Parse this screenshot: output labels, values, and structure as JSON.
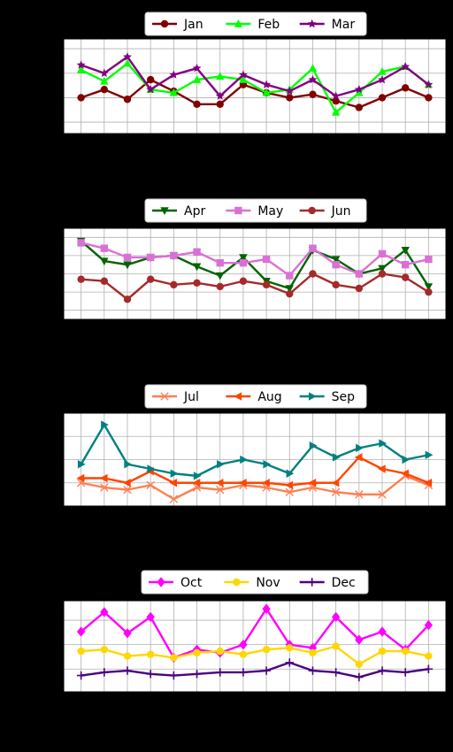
{
  "chart_data": [
    {
      "type": "line",
      "x": [
        1,
        2,
        3,
        4,
        5,
        6,
        7,
        8,
        9,
        10,
        11,
        12,
        13,
        14,
        15,
        16
      ],
      "ylim": [
        -2.2,
        3.6
      ],
      "grid": true,
      "legend": "top-center",
      "series": [
        {
          "name": "Jan",
          "color": "#800000",
          "marker": "circle",
          "values": [
            0.0,
            0.5,
            -0.1,
            1.1,
            0.4,
            -0.4,
            -0.4,
            0.8,
            0.3,
            0.0,
            0.2,
            -0.2,
            -0.6,
            0.0,
            0.6,
            0.0
          ]
        },
        {
          "name": "Feb",
          "color": "#00ff00",
          "marker": "triangle-up",
          "values": [
            1.7,
            1.0,
            2.1,
            0.5,
            0.3,
            1.1,
            1.3,
            1.1,
            0.3,
            0.5,
            1.8,
            -0.9,
            0.3,
            1.6,
            1.9,
            0.8
          ]
        },
        {
          "name": "Mar",
          "color": "#800080",
          "marker": "star",
          "values": [
            2.0,
            1.5,
            2.5,
            0.5,
            1.4,
            1.8,
            0.1,
            1.4,
            0.8,
            0.4,
            1.1,
            0.1,
            0.5,
            1.1,
            1.9,
            0.8
          ]
        }
      ]
    },
    {
      "type": "line",
      "x": [
        1,
        2,
        3,
        4,
        5,
        6,
        7,
        8,
        9,
        10,
        11,
        12,
        13,
        14,
        15,
        16
      ],
      "ylim": [
        -1.5,
        3.5
      ],
      "grid": true,
      "legend": "top-center",
      "series": [
        {
          "name": "Apr",
          "color": "#006400",
          "marker": "triangle-down",
          "values": [
            2.8,
            1.7,
            1.5,
            1.9,
            2.0,
            1.4,
            0.9,
            1.9,
            0.6,
            0.2,
            2.3,
            1.8,
            1.0,
            1.3,
            2.3,
            0.3
          ]
        },
        {
          "name": "May",
          "color": "#da70d6",
          "marker": "square",
          "values": [
            2.7,
            2.4,
            1.9,
            1.9,
            2.0,
            2.2,
            1.6,
            1.6,
            1.8,
            0.9,
            2.4,
            1.5,
            1.0,
            2.1,
            1.5,
            1.8
          ]
        },
        {
          "name": "Jun",
          "color": "#a52a2a",
          "marker": "circle",
          "values": [
            0.7,
            0.6,
            -0.4,
            0.7,
            0.4,
            0.5,
            0.3,
            0.6,
            0.4,
            -0.1,
            1.0,
            0.4,
            0.2,
            1.0,
            0.8,
            0.0
          ]
        }
      ]
    },
    {
      "type": "line",
      "x": [
        1,
        2,
        3,
        4,
        5,
        6,
        7,
        8,
        9,
        10,
        11,
        12,
        13,
        14,
        15,
        16
      ],
      "ylim": [
        -1.0,
        3.0
      ],
      "grid": true,
      "legend": "top-center",
      "series": [
        {
          "name": "Jul",
          "color": "#ff7f50",
          "marker": "x",
          "values": [
            0.0,
            -0.2,
            -0.3,
            -0.1,
            -0.7,
            -0.2,
            -0.3,
            -0.1,
            -0.2,
            -0.4,
            -0.2,
            -0.4,
            -0.5,
            -0.5,
            0.3,
            -0.1
          ]
        },
        {
          "name": "Aug",
          "color": "#ff4500",
          "marker": "triangle-left",
          "values": [
            0.2,
            0.2,
            0.0,
            0.5,
            0.0,
            0.0,
            0.0,
            0.0,
            0.0,
            -0.1,
            0.0,
            0.0,
            1.1,
            0.6,
            0.4,
            0.0
          ]
        },
        {
          "name": "Sep",
          "color": "#008080",
          "marker": "triangle-right",
          "values": [
            0.8,
            2.5,
            0.8,
            0.6,
            0.4,
            0.3,
            0.8,
            1.0,
            0.8,
            0.4,
            1.6,
            1.1,
            1.5,
            1.7,
            1.0,
            1.2
          ]
        }
      ]
    },
    {
      "type": "line",
      "x": [
        1,
        2,
        3,
        4,
        5,
        6,
        7,
        8,
        9,
        10,
        11,
        12,
        13,
        14,
        15,
        16
      ],
      "ylim": [
        -1.4,
        4.2
      ],
      "grid": true,
      "legend": "top-center",
      "series": [
        {
          "name": "Oct",
          "color": "#ff00ff",
          "marker": "diamond",
          "values": [
            2.3,
            3.5,
            2.2,
            3.2,
            0.7,
            1.2,
            1.0,
            1.5,
            3.7,
            1.5,
            1.3,
            3.2,
            1.8,
            2.3,
            1.2,
            2.7
          ]
        },
        {
          "name": "Nov",
          "color": "#ffd700",
          "marker": "circle",
          "values": [
            1.1,
            1.2,
            0.8,
            0.9,
            0.7,
            1.0,
            1.1,
            0.9,
            1.2,
            1.3,
            1.0,
            1.4,
            0.3,
            1.1,
            1.1,
            0.8
          ]
        },
        {
          "name": "Dec",
          "color": "#4b0082",
          "marker": "plus",
          "values": [
            -0.4,
            -0.2,
            -0.1,
            -0.3,
            -0.4,
            -0.3,
            -0.2,
            -0.2,
            -0.1,
            0.4,
            -0.1,
            -0.2,
            -0.5,
            -0.1,
            -0.2,
            0.0
          ]
        }
      ]
    }
  ]
}
